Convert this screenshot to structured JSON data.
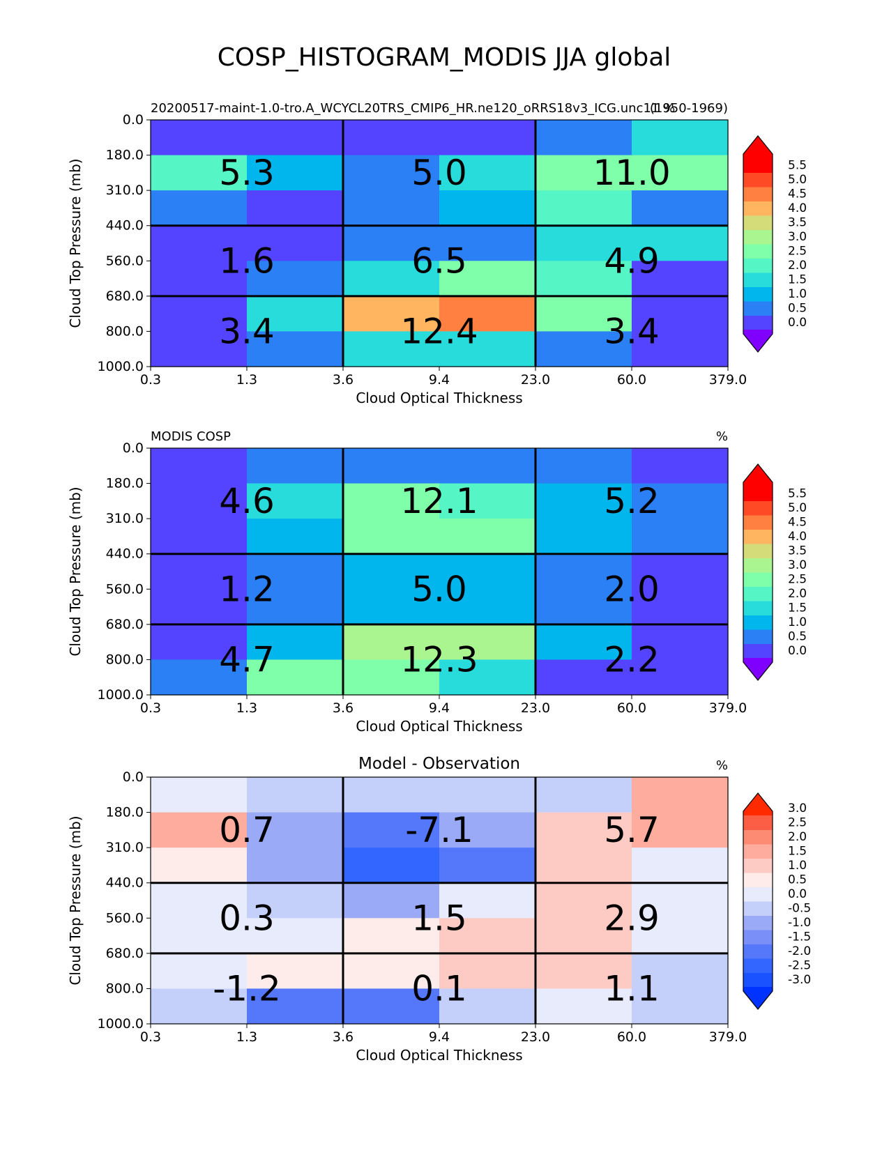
{
  "figure": {
    "title": "COSP_HISTOGRAM_MODIS JJA global"
  },
  "chart_data": [
    {
      "type": "heatmap",
      "title_left": "20200517-maint-1.0-tro.A_WCYCL20TRS_CMIP6_HR.ne120_oRRS18v3_ICG.unc11 %",
      "title_center": "",
      "title_right": "(1950-1969)",
      "xlabel": "Cloud Optical Thickness",
      "ylabel": "Cloud Top Pressure (mb)",
      "x_ticks": [
        "0.3",
        "1.3",
        "3.6",
        "9.4",
        "23.0",
        "60.0",
        "379.0"
      ],
      "y_ticks": [
        "0.0",
        "180.0",
        "310.0",
        "440.0",
        "560.0",
        "680.0",
        "800.0",
        "1000.0"
      ],
      "values": [
        [
          0.3,
          0.3,
          0.3,
          0.3,
          0.8,
          1.8
        ],
        [
          2.3,
          1.3,
          0.8,
          1.8,
          2.8,
          2.8
        ],
        [
          0.8,
          0.3,
          0.8,
          1.3,
          2.3,
          0.8
        ],
        [
          0.3,
          0.3,
          0.8,
          0.8,
          1.8,
          1.8
        ],
        [
          0.3,
          0.8,
          1.8,
          2.8,
          2.3,
          0.3
        ],
        [
          0.3,
          1.8,
          4.3,
          4.8,
          2.8,
          0.3
        ],
        [
          0.3,
          0.8,
          1.8,
          1.8,
          0.8,
          0.3
        ]
      ],
      "box_labels": [
        [
          "5.3",
          "5.0",
          "11.0"
        ],
        [
          "1.6",
          "6.5",
          "4.9"
        ],
        [
          "3.4",
          "12.4",
          "3.4"
        ]
      ],
      "colorbar": {
        "levels": [
          "0.0",
          "0.5",
          "1.0",
          "1.5",
          "2.0",
          "2.5",
          "3.0",
          "3.5",
          "4.0",
          "4.5",
          "5.0",
          "5.5"
        ],
        "colors": [
          "#5544ff",
          "#2a80f4",
          "#00b6ec",
          "#29dcdc",
          "#55f5c5",
          "#80ffaa",
          "#aaf590",
          "#d4dc7a",
          "#ffb460",
          "#ff8040",
          "#ff4a26",
          "#ff0000"
        ],
        "under_color": "#8000ff",
        "over_color": "#ff0000"
      }
    },
    {
      "type": "heatmap",
      "title_left": "MODIS COSP",
      "title_center": "",
      "title_right": "%",
      "xlabel": "Cloud Optical Thickness",
      "ylabel": "Cloud Top Pressure (mb)",
      "x_ticks": [
        "0.3",
        "1.3",
        "3.6",
        "9.4",
        "23.0",
        "60.0",
        "379.0"
      ],
      "y_ticks": [
        "0.0",
        "180.0",
        "310.0",
        "440.0",
        "560.0",
        "680.0",
        "800.0",
        "1000.0"
      ],
      "values": [
        [
          0.3,
          0.8,
          0.8,
          0.8,
          0.8,
          0.3
        ],
        [
          0.3,
          1.8,
          2.8,
          2.3,
          1.3,
          0.8
        ],
        [
          0.3,
          1.3,
          2.8,
          2.8,
          1.3,
          0.8
        ],
        [
          0.3,
          0.8,
          1.3,
          1.3,
          0.8,
          0.3
        ],
        [
          0.3,
          0.8,
          1.3,
          1.3,
          0.8,
          0.3
        ],
        [
          0.3,
          1.3,
          3.3,
          3.3,
          1.3,
          0.3
        ],
        [
          0.8,
          2.8,
          2.8,
          1.8,
          0.3,
          0.3
        ]
      ],
      "box_labels": [
        [
          "4.6",
          "12.1",
          "5.2"
        ],
        [
          "1.2",
          "5.0",
          "2.0"
        ],
        [
          "4.7",
          "12.3",
          "2.2"
        ]
      ],
      "colorbar": {
        "levels": [
          "0.0",
          "0.5",
          "1.0",
          "1.5",
          "2.0",
          "2.5",
          "3.0",
          "3.5",
          "4.0",
          "4.5",
          "5.0",
          "5.5"
        ],
        "colors": [
          "#5544ff",
          "#2a80f4",
          "#00b6ec",
          "#29dcdc",
          "#55f5c5",
          "#80ffaa",
          "#aaf590",
          "#d4dc7a",
          "#ffb460",
          "#ff8040",
          "#ff4a26",
          "#ff0000"
        ],
        "under_color": "#8000ff",
        "over_color": "#ff0000"
      }
    },
    {
      "type": "heatmap",
      "title_left": "",
      "title_center": "Model - Observation",
      "title_right": "%",
      "xlabel": "Cloud Optical Thickness",
      "ylabel": "Cloud Top Pressure (mb)",
      "x_ticks": [
        "0.3",
        "1.3",
        "3.6",
        "9.4",
        "23.0",
        "60.0",
        "379.0"
      ],
      "y_ticks": [
        "0.0",
        "180.0",
        "310.0",
        "440.0",
        "560.0",
        "680.0",
        "800.0",
        "1000.0"
      ],
      "values": [
        [
          0.25,
          -0.25,
          -0.25,
          -0.25,
          -0.25,
          1.75
        ],
        [
          1.75,
          -0.75,
          -1.75,
          -0.75,
          1.25,
          1.75
        ],
        [
          0.75,
          -0.75,
          -2.25,
          -1.75,
          1.25,
          0.25
        ],
        [
          0.25,
          -0.25,
          -0.75,
          0.25,
          1.25,
          0.25
        ],
        [
          0.25,
          0.25,
          0.75,
          1.25,
          1.25,
          0.25
        ],
        [
          0.25,
          0.75,
          0.75,
          1.25,
          1.25,
          -0.25
        ],
        [
          -0.25,
          -1.75,
          -1.75,
          -0.25,
          0.25,
          -0.25
        ]
      ],
      "box_labels": [
        [
          "0.7",
          "-7.1",
          "5.7"
        ],
        [
          "0.3",
          "1.5",
          "2.9"
        ],
        [
          "-1.2",
          "0.1",
          "1.1"
        ]
      ],
      "colorbar": {
        "levels": [
          "-3.0",
          "-2.5",
          "-2.0",
          "-1.5",
          "-1.0",
          "-0.5",
          "0.0",
          "0.5",
          "1.0",
          "1.5",
          "2.0",
          "2.5",
          "3.0"
        ],
        "colors": [
          "#1a52ff",
          "#3366ff",
          "#5577fa",
          "#7a8ff8",
          "#9aaaf6",
          "#c4d0fa",
          "#e7ebfc",
          "#fdecea",
          "#fdcac4",
          "#fdac9d",
          "#fd8a72",
          "#fc5e45"
        ],
        "under_color": "#0033ff",
        "over_color": "#ff2a00"
      }
    }
  ]
}
